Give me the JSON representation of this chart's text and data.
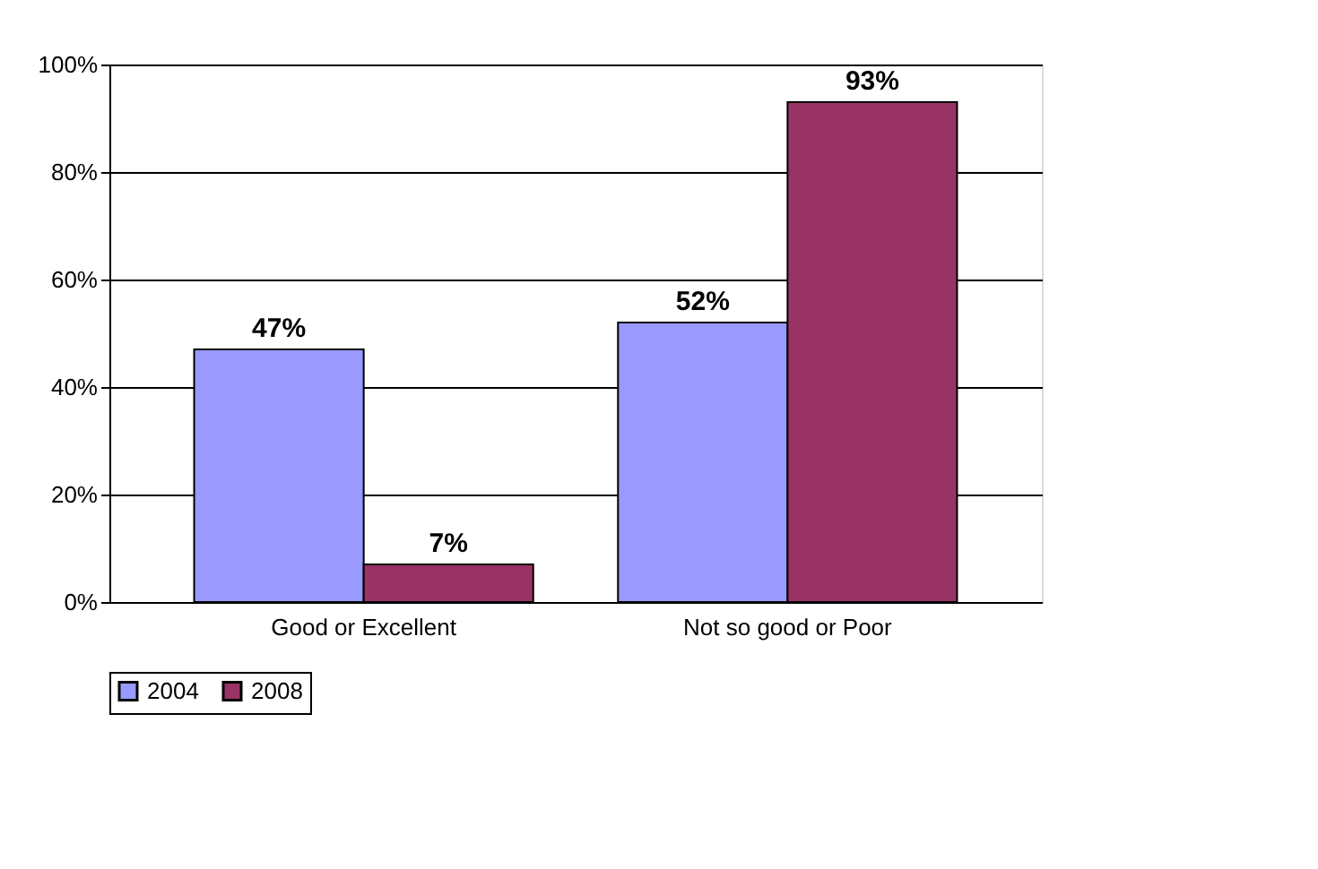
{
  "chart_data": {
    "type": "bar",
    "categories": [
      "Good or  Excellent",
      "Not so good or Poor"
    ],
    "series": [
      {
        "name": "2004",
        "color": "#9999ff",
        "values": [
          47,
          52
        ],
        "value_labels": [
          "47%",
          "52%"
        ]
      },
      {
        "name": "2008",
        "color": "#993366",
        "values": [
          7,
          93
        ],
        "value_labels": [
          "7%",
          "93%"
        ]
      }
    ],
    "ylim": [
      0,
      100
    ],
    "yticks": [
      {
        "value": 0,
        "label": "0%"
      },
      {
        "value": 20,
        "label": "20%"
      },
      {
        "value": 40,
        "label": "40%"
      },
      {
        "value": 60,
        "label": "60%"
      },
      {
        "value": 80,
        "label": "80%"
      },
      {
        "value": 100,
        "label": "100%"
      }
    ],
    "grid": "y",
    "legend": "bottom"
  }
}
